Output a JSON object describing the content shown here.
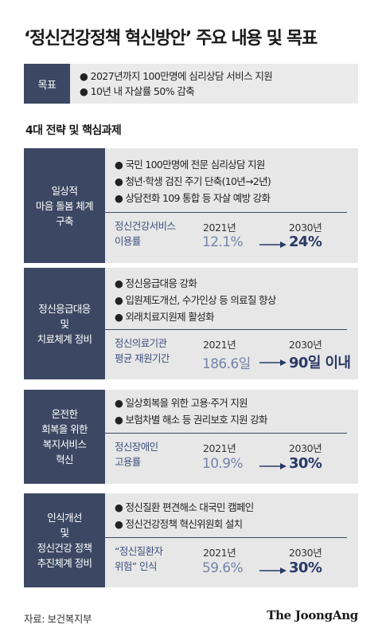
{
  "title": "‘정신건강정책 혁신방안’ 주요 내용 및 목표",
  "goal": {
    "label": "목표",
    "items": [
      "● 2027년까지 100만명에 심리상담 서비스 지원",
      "● 10년 내 자살률 50% 감축"
    ]
  },
  "section_title": "4대 전략 및 핵심과제",
  "strategies": [
    {
      "label_lines": [
        "일상적",
        "마음 돌봄 체계",
        "구축"
      ],
      "items": [
        "● 국민 100만명에 전문 심리상담 지원",
        "● 청년·학생 검진 주기 단축(10년→2년)",
        "● 상담전화 109 통합 등 자살 예방 강화"
      ],
      "metric_lines": [
        "정신건강서비스",
        "이용률"
      ],
      "year_from": "2021년",
      "year_to": "2030년",
      "value_from": "12.1%",
      "value_to": "24%"
    },
    {
      "label_lines": [
        "정신응급대응",
        "및",
        "치료체계 정비"
      ],
      "items": [
        "● 정신응급대응 강화",
        "● 입원제도개선, 수가인상 등 의료질 향상",
        "● 외래치료지원제 활성화"
      ],
      "metric_lines": [
        "정신의료기관",
        "평균 재원기간"
      ],
      "year_from": "2021년",
      "year_to": "2030년",
      "value_from": "186.6일",
      "value_to": "90일 이내"
    },
    {
      "label_lines": [
        "온전한",
        "회복을 위한",
        "복지서비스",
        "혁신"
      ],
      "items": [
        "● 일상회복을 위한 고용·주거 지원",
        "● 보험차별 해소 등 권리보호 지원 강화"
      ],
      "metric_lines": [
        "정신장애인",
        "고용률"
      ],
      "year_from": "2021년",
      "year_to": "2030년",
      "value_from": "10.9%",
      "value_to": "30%"
    },
    {
      "label_lines": [
        "인식개선",
        "및",
        "정신건강 정책",
        "추진체계 정비"
      ],
      "items": [
        "● 정신질환 편견해소 대국민 캠페인",
        "● 정신건강정책 혁신위원회 설치"
      ],
      "metric_lines": [
        "“정신질환자",
        "위험” 인식"
      ],
      "year_from": "2021년",
      "year_to": "2030년",
      "value_from": "59.6%",
      "value_to": "30%"
    }
  ],
  "footer": {
    "source": "자료: 보건복지부",
    "logo": "The JoongAng"
  },
  "colors": {
    "navy": "#3c4863",
    "card_bg": "#e7e7e7",
    "value_light": "#7483a8",
    "value_dark": "#2a3a66"
  }
}
